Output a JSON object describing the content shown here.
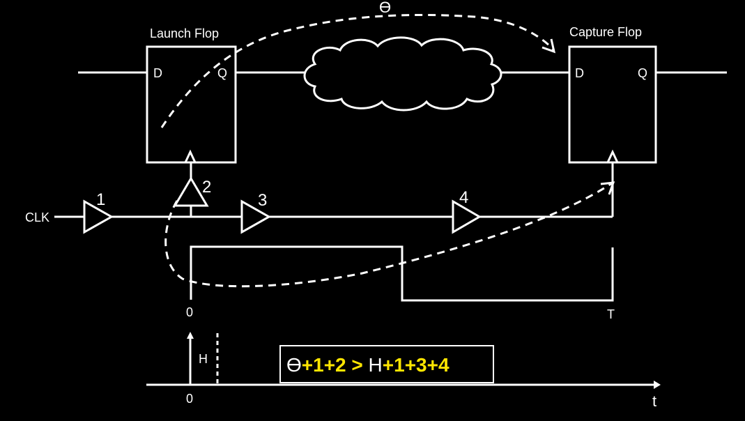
{
  "labels": {
    "theta": "ϴ",
    "launch_flop": "Launch Flop",
    "capture_flop": "Capture Flop",
    "d_pin": "D",
    "q_pin": "Q",
    "clk": "CLK",
    "buffer_1": "1",
    "buffer_2": "2",
    "buffer_3": "3",
    "buffer_4": "4",
    "time_zero": "0",
    "period": "T",
    "hold": "H",
    "time_axis": "t"
  },
  "equation": {
    "theta": "ϴ",
    "lhs_delays": "+1+2 > ",
    "hold": "H",
    "rhs_delays": "+1+3+4"
  }
}
